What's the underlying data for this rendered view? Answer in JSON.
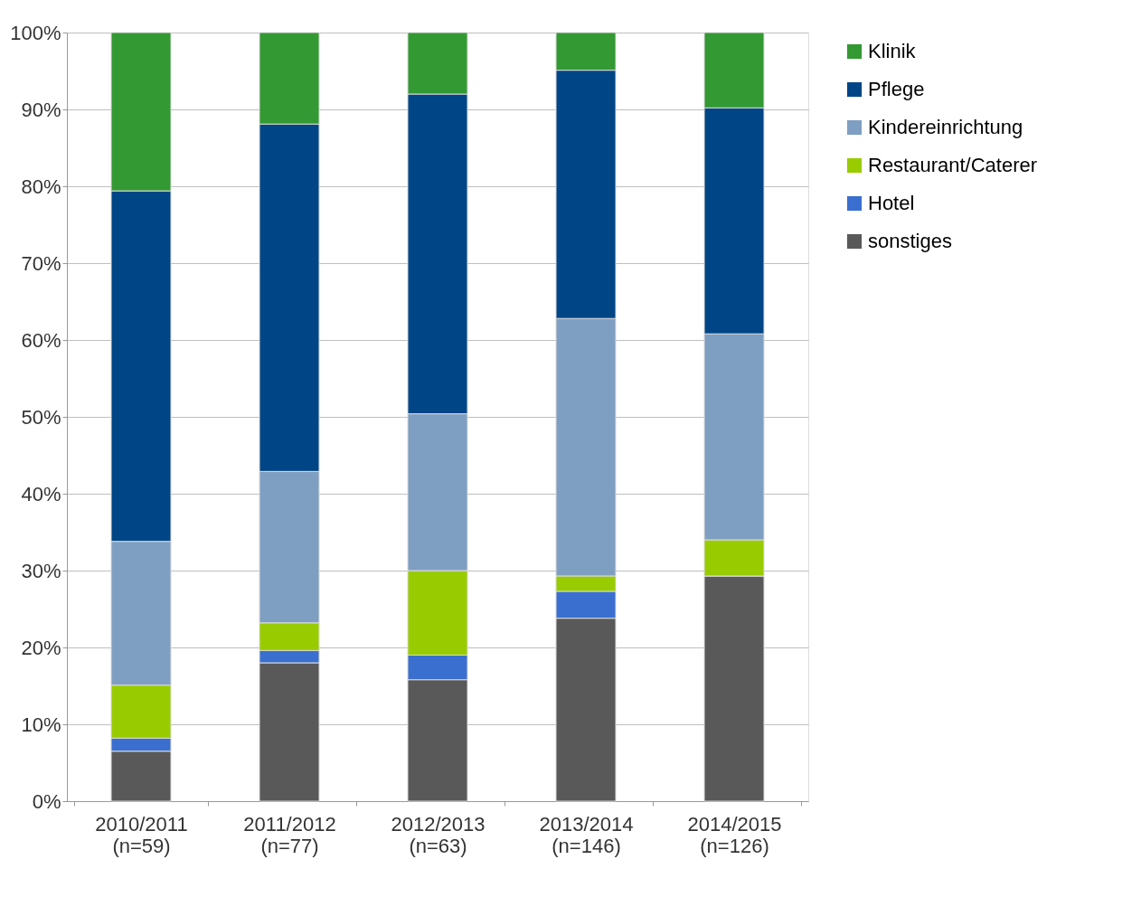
{
  "chart_data": {
    "type": "bar",
    "stacked": true,
    "categories": [
      "2010/2011 (n=59)",
      "2011/2012 (n=77)",
      "2012/2013 (n=63)",
      "2013/2014 (n=146)",
      "2014/2015 (n=126)"
    ],
    "series": [
      {
        "name": "sonstiges",
        "color": "#595959",
        "values": [
          6.5,
          18.0,
          15.8,
          23.8,
          29.3
        ]
      },
      {
        "name": "Hotel",
        "color": "#3a6fcf",
        "values": [
          1.7,
          1.6,
          3.2,
          3.5,
          0
        ]
      },
      {
        "name": "Restaurant/Caterer",
        "color": "#99cc00",
        "values": [
          6.9,
          3.6,
          11.0,
          2.0,
          4.7
        ]
      },
      {
        "name": "Kindereinrichtung",
        "color": "#7f9fc2",
        "values": [
          18.7,
          19.7,
          20.4,
          33.5,
          26.8
        ]
      },
      {
        "name": "Pflege",
        "color": "#004586",
        "values": [
          45.6,
          45.2,
          41.6,
          32.3,
          29.4
        ]
      },
      {
        "name": "Klinik",
        "color": "#339933",
        "values": [
          20.6,
          11.9,
          8.0,
          4.9,
          9.8
        ]
      }
    ],
    "ylim": [
      0,
      100
    ],
    "yticks": [
      {
        "value": 0,
        "label": "0%"
      },
      {
        "value": 10,
        "label": "10%"
      },
      {
        "value": 20,
        "label": "20%"
      },
      {
        "value": 30,
        "label": "30%"
      },
      {
        "value": 40,
        "label": "40%"
      },
      {
        "value": 50,
        "label": "50%"
      },
      {
        "value": 60,
        "label": "60%"
      },
      {
        "value": 70,
        "label": "70%"
      },
      {
        "value": 80,
        "label": "80%"
      },
      {
        "value": 90,
        "label": "90%"
      },
      {
        "value": 100,
        "label": "100%"
      }
    ],
    "grid": "y",
    "legend": "right"
  }
}
